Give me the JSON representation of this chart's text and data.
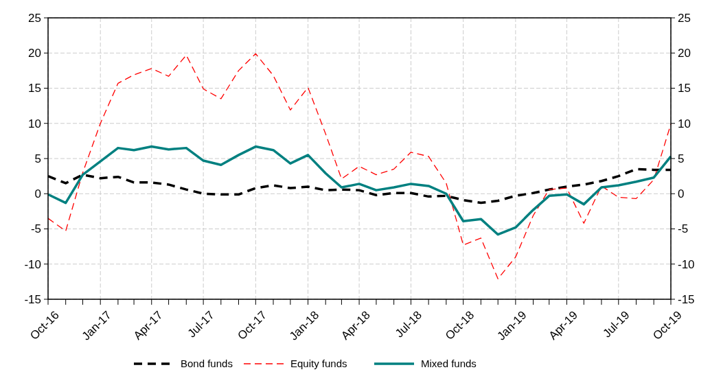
{
  "chart_data": {
    "type": "line",
    "x": [
      "2016-10",
      "2016-11",
      "2016-12",
      "2017-01",
      "2017-02",
      "2017-03",
      "2017-04",
      "2017-05",
      "2017-06",
      "2017-07",
      "2017-08",
      "2017-09",
      "2017-10",
      "2017-11",
      "2017-12",
      "2018-01",
      "2018-02",
      "2018-03",
      "2018-04",
      "2018-05",
      "2018-06",
      "2018-07",
      "2018-08",
      "2018-09",
      "2018-10",
      "2018-11",
      "2018-12",
      "2019-01",
      "2019-02",
      "2019-03",
      "2019-04",
      "2019-05",
      "2019-06",
      "2019-07",
      "2019-08",
      "2019-09",
      "2019-10"
    ],
    "series": [
      {
        "name": "Bond funds",
        "color": "#000000",
        "line_style": "dashed",
        "values": [
          2.5,
          1.5,
          2.7,
          2.2,
          2.4,
          1.6,
          1.6,
          1.3,
          0.6,
          0,
          -0.1,
          -0.1,
          0.8,
          1.2,
          0.8,
          1.0,
          0.5,
          0.6,
          0.5,
          -0.2,
          0.1,
          0.1,
          -0.4,
          -0.3,
          -0.9,
          -1.3,
          -1.0,
          -0.3,
          0.1,
          0.6,
          1.0,
          1.3,
          1.8,
          2.5,
          3.5,
          3.4,
          3.4
        ]
      },
      {
        "name": "Equity funds",
        "color": "#ff0000",
        "line_style": "dashed",
        "values": [
          -3.5,
          -5.3,
          3,
          10,
          15.7,
          16.9,
          17.8,
          16.7,
          19.7,
          14.9,
          13.5,
          17.5,
          19.9,
          16.8,
          11.9,
          15.1,
          8.5,
          2.1,
          3.9,
          2.7,
          3.5,
          5.9,
          5.3,
          1.5,
          -7.3,
          -6.3,
          -12.1,
          -9.0,
          -3.1,
          0.6,
          0.8,
          -4.2,
          1.1,
          -0.5,
          -0.7,
          2.0,
          9.9
        ]
      },
      {
        "name": "Mixed funds",
        "color": "#008080",
        "line_style": "solid",
        "values": [
          -0.1,
          -1.3,
          2.7,
          4.6,
          6.5,
          6.2,
          6.7,
          6.3,
          6.5,
          4.7,
          4.1,
          5.5,
          6.7,
          6.2,
          4.3,
          5.5,
          2.9,
          0.9,
          1.4,
          0.5,
          0.9,
          1.4,
          1.1,
          0.0,
          -3.9,
          -3.6,
          -5.8,
          -4.8,
          -2.3,
          -0.3,
          -0.1,
          -1.5,
          0.9,
          1.2,
          1.7,
          2.3,
          5.3
        ]
      }
    ],
    "xlim": [
      "2016-10",
      "2019-10"
    ],
    "xticks": [
      {
        "value": "2016-10",
        "label": "Oct-16"
      },
      {
        "value": "2016-11",
        "label": null
      },
      {
        "value": "2016-12",
        "label": null
      },
      {
        "value": "2017-01",
        "label": "Jan-17"
      },
      {
        "value": "2017-02",
        "label": null
      },
      {
        "value": "2017-03",
        "label": null
      },
      {
        "value": "2017-04",
        "label": "Apr-17"
      },
      {
        "value": "2017-05",
        "label": null
      },
      {
        "value": "2017-06",
        "label": null
      },
      {
        "value": "2017-07",
        "label": "Jul-17"
      },
      {
        "value": "2017-08",
        "label": null
      },
      {
        "value": "2017-09",
        "label": null
      },
      {
        "value": "2017-10",
        "label": "Oct-17"
      },
      {
        "value": "2017-11",
        "label": null
      },
      {
        "value": "2017-12",
        "label": null
      },
      {
        "value": "2018-01",
        "label": "Jan-18"
      },
      {
        "value": "2018-02",
        "label": null
      },
      {
        "value": "2018-03",
        "label": null
      },
      {
        "value": "2018-04",
        "label": "Apr-18"
      },
      {
        "value": "2018-05",
        "label": null
      },
      {
        "value": "2018-06",
        "label": null
      },
      {
        "value": "2018-07",
        "label": "Jul-18"
      },
      {
        "value": "2018-08",
        "label": null
      },
      {
        "value": "2018-09",
        "label": null
      },
      {
        "value": "2018-10",
        "label": "Oct-18"
      },
      {
        "value": "2018-11",
        "label": null
      },
      {
        "value": "2018-12",
        "label": null
      },
      {
        "value": "2019-01",
        "label": "Jan-19"
      },
      {
        "value": "2019-02",
        "label": null
      },
      {
        "value": "2019-03",
        "label": null
      },
      {
        "value": "2019-04",
        "label": "Apr-19"
      },
      {
        "value": "2019-05",
        "label": null
      },
      {
        "value": "2019-06",
        "label": null
      },
      {
        "value": "2019-07",
        "label": "Jul-19"
      },
      {
        "value": "2019-08",
        "label": null
      },
      {
        "value": "2019-09",
        "label": null
      },
      {
        "value": "2019-10",
        "label": "Oct-19"
      }
    ],
    "ylim": [
      -15,
      25
    ],
    "yticks": [
      -15,
      -10,
      -5,
      0,
      5,
      10,
      15,
      20,
      25
    ],
    "y2lim": [
      -15,
      25
    ],
    "y2ticks": [
      -15,
      -10,
      -5,
      0,
      5,
      10,
      15,
      20,
      25
    ],
    "grid": true,
    "legend": "bottom",
    "marker": "none"
  }
}
